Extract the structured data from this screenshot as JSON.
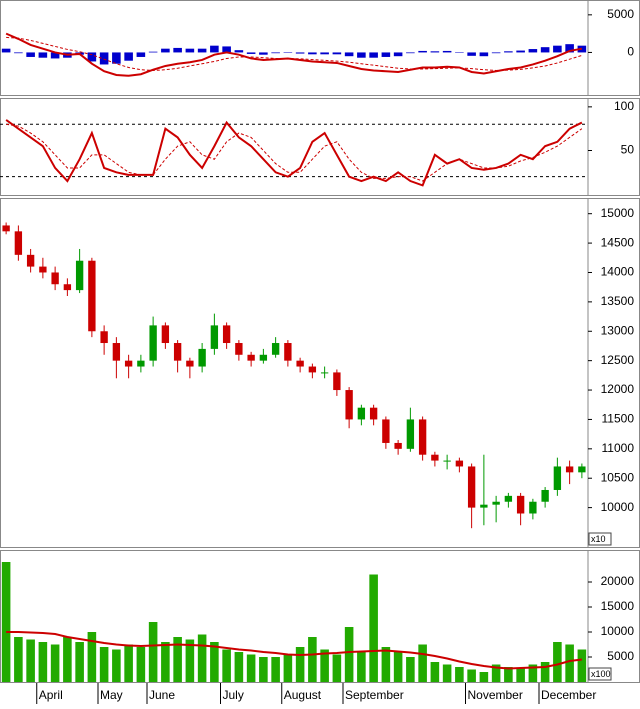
{
  "chart_data": [
    {
      "type": "line",
      "ylim": [
        -5660,
        6840
      ],
      "yticks": [
        0,
        5000
      ],
      "series": [
        {
          "style": "bar",
          "color": "#0000cc",
          "values": [
            500,
            -100,
            -600,
            -700,
            -800,
            -700,
            -300,
            -1200,
            -1600,
            -1500,
            -1100,
            -600,
            100,
            500,
            600,
            500,
            500,
            900,
            800,
            300,
            -200,
            -300,
            -100,
            0,
            -150,
            -250,
            -250,
            -250,
            -500,
            -700,
            -700,
            -600,
            -500,
            -100,
            200,
            150,
            200,
            50,
            -450,
            -500,
            -100,
            150,
            250,
            450,
            700,
            900,
            1100,
            900
          ]
        },
        {
          "style": "dashed",
          "color": "#cc0000",
          "values": [
            2000,
            1900,
            1600,
            1200,
            800,
            400,
            100,
            -300,
            -900,
            -1500,
            -2000,
            -2300,
            -2400,
            -2300,
            -2100,
            -1800,
            -1500,
            -1200,
            -800,
            -600,
            -600,
            -700,
            -800,
            -800,
            -850,
            -950,
            -1050,
            -1150,
            -1300,
            -1500,
            -1700,
            -1900,
            -2100,
            -2200,
            -2200,
            -2150,
            -2100,
            -2050,
            -2150,
            -2300,
            -2400,
            -2350,
            -2250,
            -2050,
            -1800,
            -1400,
            -900,
            -400
          ]
        },
        {
          "style": "solid",
          "color": "#cc0000",
          "values": [
            2500,
            1800,
            1000,
            500,
            0,
            -300,
            -200,
            -1500,
            -2500,
            -3000,
            -3100,
            -2900,
            -2300,
            -1800,
            -1500,
            -1300,
            -1000,
            -300,
            0,
            -300,
            -800,
            -1000,
            -900,
            -800,
            -1000,
            -1200,
            -1300,
            -1400,
            -1800,
            -2200,
            -2400,
            -2500,
            -2600,
            -2300,
            -2000,
            -2000,
            -1900,
            -2000,
            -2600,
            -2800,
            -2500,
            -2200,
            -2000,
            -1600,
            -1100,
            -500,
            200,
            500
          ]
        }
      ]
    },
    {
      "type": "line",
      "ylim": [
        -1,
        109
      ],
      "yticks": [
        50,
        100
      ],
      "levels": [
        20,
        80
      ],
      "series": [
        {
          "style": "dashed",
          "color": "#cc0000",
          "values": [
            80,
            78,
            70,
            60,
            45,
            30,
            30,
            45,
            45,
            35,
            25,
            22,
            22,
            40,
            55,
            60,
            45,
            40,
            60,
            70,
            65,
            50,
            35,
            25,
            25,
            40,
            55,
            60,
            40,
            25,
            18,
            18,
            20,
            20,
            15,
            25,
            35,
            40,
            35,
            30,
            30,
            32,
            38,
            42,
            48,
            55,
            65,
            75
          ]
        },
        {
          "style": "solid",
          "color": "#cc0000",
          "values": [
            85,
            75,
            65,
            55,
            30,
            15,
            40,
            70,
            30,
            25,
            22,
            22,
            22,
            75,
            65,
            45,
            30,
            55,
            82,
            65,
            55,
            40,
            25,
            20,
            30,
            60,
            70,
            45,
            20,
            15,
            20,
            15,
            25,
            15,
            10,
            45,
            35,
            40,
            30,
            28,
            30,
            35,
            45,
            40,
            55,
            60,
            75,
            82
          ]
        }
      ]
    },
    {
      "type": "candlestick",
      "ylim": [
        9330,
        15250
      ],
      "yticks": [
        10000,
        10500,
        11000,
        11500,
        12000,
        12500,
        13000,
        13500,
        14000,
        14500,
        15000
      ],
      "unit": "x10",
      "up_color": "#009900",
      "down_color": "#cc0000",
      "open": [
        14800,
        14700,
        14300,
        14100,
        14000,
        13800,
        13700,
        14200,
        13000,
        12800,
        12500,
        12400,
        12500,
        13100,
        12800,
        12500,
        12400,
        12700,
        13100,
        12800,
        12600,
        12500,
        12600,
        12800,
        12500,
        12400,
        12300,
        12300,
        12000,
        11500,
        11700,
        11500,
        11100,
        11000,
        11500,
        10900,
        10800,
        10800,
        10700,
        10000,
        10050,
        10100,
        10200,
        9900,
        10100,
        10300,
        10700,
        10600
      ],
      "high": [
        14850,
        14800,
        14400,
        14250,
        14100,
        13900,
        14400,
        14250,
        13100,
        12900,
        12600,
        12600,
        13250,
        13150,
        12850,
        12550,
        12800,
        13300,
        13150,
        12850,
        12650,
        12700,
        12900,
        12850,
        12550,
        12450,
        12400,
        12350,
        12050,
        11750,
        11750,
        11550,
        11150,
        11700,
        11550,
        10950,
        10900,
        10850,
        10750,
        10900,
        10200,
        10250,
        10250,
        10150,
        10350,
        10850,
        10800,
        10750
      ],
      "low": [
        14650,
        14200,
        14000,
        13900,
        13700,
        13600,
        13650,
        12900,
        12600,
        12200,
        12200,
        12300,
        12400,
        12700,
        12300,
        12200,
        12300,
        12600,
        12700,
        12500,
        12400,
        12450,
        12550,
        12400,
        12300,
        12200,
        12200,
        11900,
        11350,
        11400,
        11400,
        11000,
        10900,
        10950,
        10800,
        10700,
        10650,
        10600,
        9650,
        9700,
        9750,
        10000,
        9700,
        9800,
        10000,
        10200,
        10400,
        10500
      ],
      "close": [
        14700,
        14300,
        14100,
        14000,
        13800,
        13700,
        14200,
        13000,
        12800,
        12500,
        12400,
        12500,
        13100,
        12800,
        12500,
        12400,
        12700,
        13100,
        12800,
        12600,
        12500,
        12600,
        12800,
        12500,
        12400,
        12300,
        12300,
        12000,
        11500,
        11700,
        11500,
        11100,
        11000,
        11500,
        10900,
        10800,
        10800,
        10700,
        10000,
        10050,
        10100,
        10200,
        9900,
        10100,
        10300,
        10700,
        10600,
        10700
      ]
    },
    {
      "type": "bar",
      "ylim": [
        0,
        26200
      ],
      "yticks": [
        5000,
        10000,
        15000,
        20000
      ],
      "unit": "x100",
      "color": "#22aa00",
      "categories": [
        null,
        null,
        null,
        "April",
        null,
        null,
        null,
        null,
        "May",
        null,
        null,
        null,
        "June",
        null,
        null,
        null,
        null,
        null,
        "July",
        null,
        null,
        null,
        null,
        "August",
        null,
        null,
        null,
        null,
        "September",
        null,
        null,
        null,
        null,
        null,
        null,
        null,
        null,
        null,
        "November",
        null,
        null,
        null,
        null,
        null,
        "December",
        null,
        null,
        null
      ],
      "values": [
        24000,
        9000,
        8500,
        8000,
        7500,
        9000,
        8000,
        10000,
        7000,
        6500,
        7500,
        7000,
        12000,
        8000,
        9000,
        8500,
        9500,
        8000,
        6500,
        6000,
        5500,
        5000,
        5000,
        5500,
        7000,
        9000,
        6500,
        5500,
        11000,
        6000,
        21500,
        7000,
        6000,
        5000,
        7500,
        4000,
        3500,
        3000,
        2500,
        2000,
        3500,
        3000,
        2800,
        3500,
        4000,
        8000,
        7500,
        6500
      ],
      "series": [
        {
          "style": "solid",
          "color": "#cc0000",
          "values": [
            10000,
            10000,
            9900,
            9800,
            9600,
            9000,
            8600,
            8200,
            7800,
            7500,
            7300,
            7200,
            7300,
            7400,
            7500,
            7400,
            7300,
            7100,
            6800,
            6500,
            6300,
            6000,
            5800,
            5500,
            5400,
            5500,
            5700,
            5800,
            6000,
            6100,
            6200,
            6300,
            6100,
            5900,
            5600,
            5200,
            4700,
            4100,
            3600,
            3200,
            2900,
            2700,
            2800,
            2900,
            3000,
            3500,
            4200,
            4500
          ]
        }
      ]
    }
  ]
}
